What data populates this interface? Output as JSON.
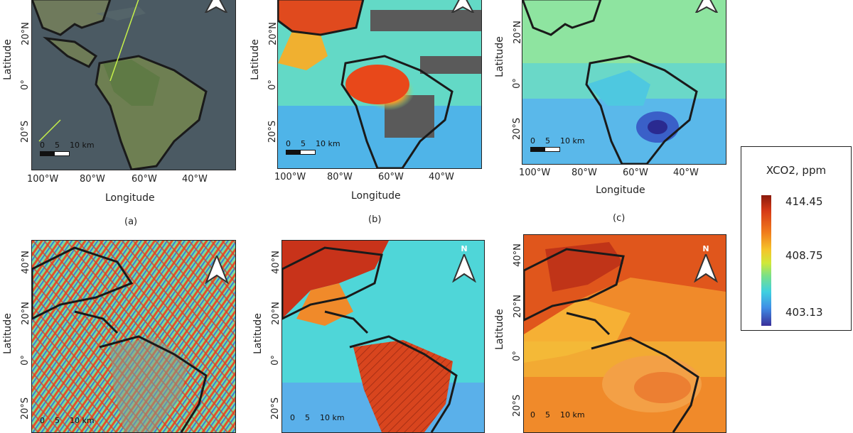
{
  "legend": {
    "title": "XCO2, ppm",
    "max": "414.45",
    "mid": "408.75",
    "min": "403.13",
    "colormap": [
      "#8a1a0c",
      "#d63a16",
      "#f07a1c",
      "#f5c52a",
      "#cfe83a",
      "#78e08a",
      "#3fd0e0",
      "#3f8fe6",
      "#3a2f9a"
    ]
  },
  "axes": {
    "xlabel": "Longitude",
    "ylabel": "Latitude",
    "lon_ticks": [
      "100°W",
      "80°W",
      "60°W",
      "40°W"
    ],
    "lat_ticks_top": [
      "20°N",
      "0°",
      "20°S"
    ],
    "lat_ticks_bottom": [
      "40°N",
      "20°N",
      "0°",
      "20°S"
    ]
  },
  "scale_bar": {
    "label": "0    5    10 km"
  },
  "north_arrow": {
    "label": "N",
    "icon": "north-arrow-icon"
  },
  "panels": [
    {
      "id": "a",
      "caption": "(a)"
    },
    {
      "id": "b",
      "caption": "(b)"
    },
    {
      "id": "c",
      "caption": "(c)"
    },
    {
      "id": "d",
      "caption": ""
    },
    {
      "id": "e",
      "caption": ""
    },
    {
      "id": "f",
      "caption": ""
    }
  ]
}
